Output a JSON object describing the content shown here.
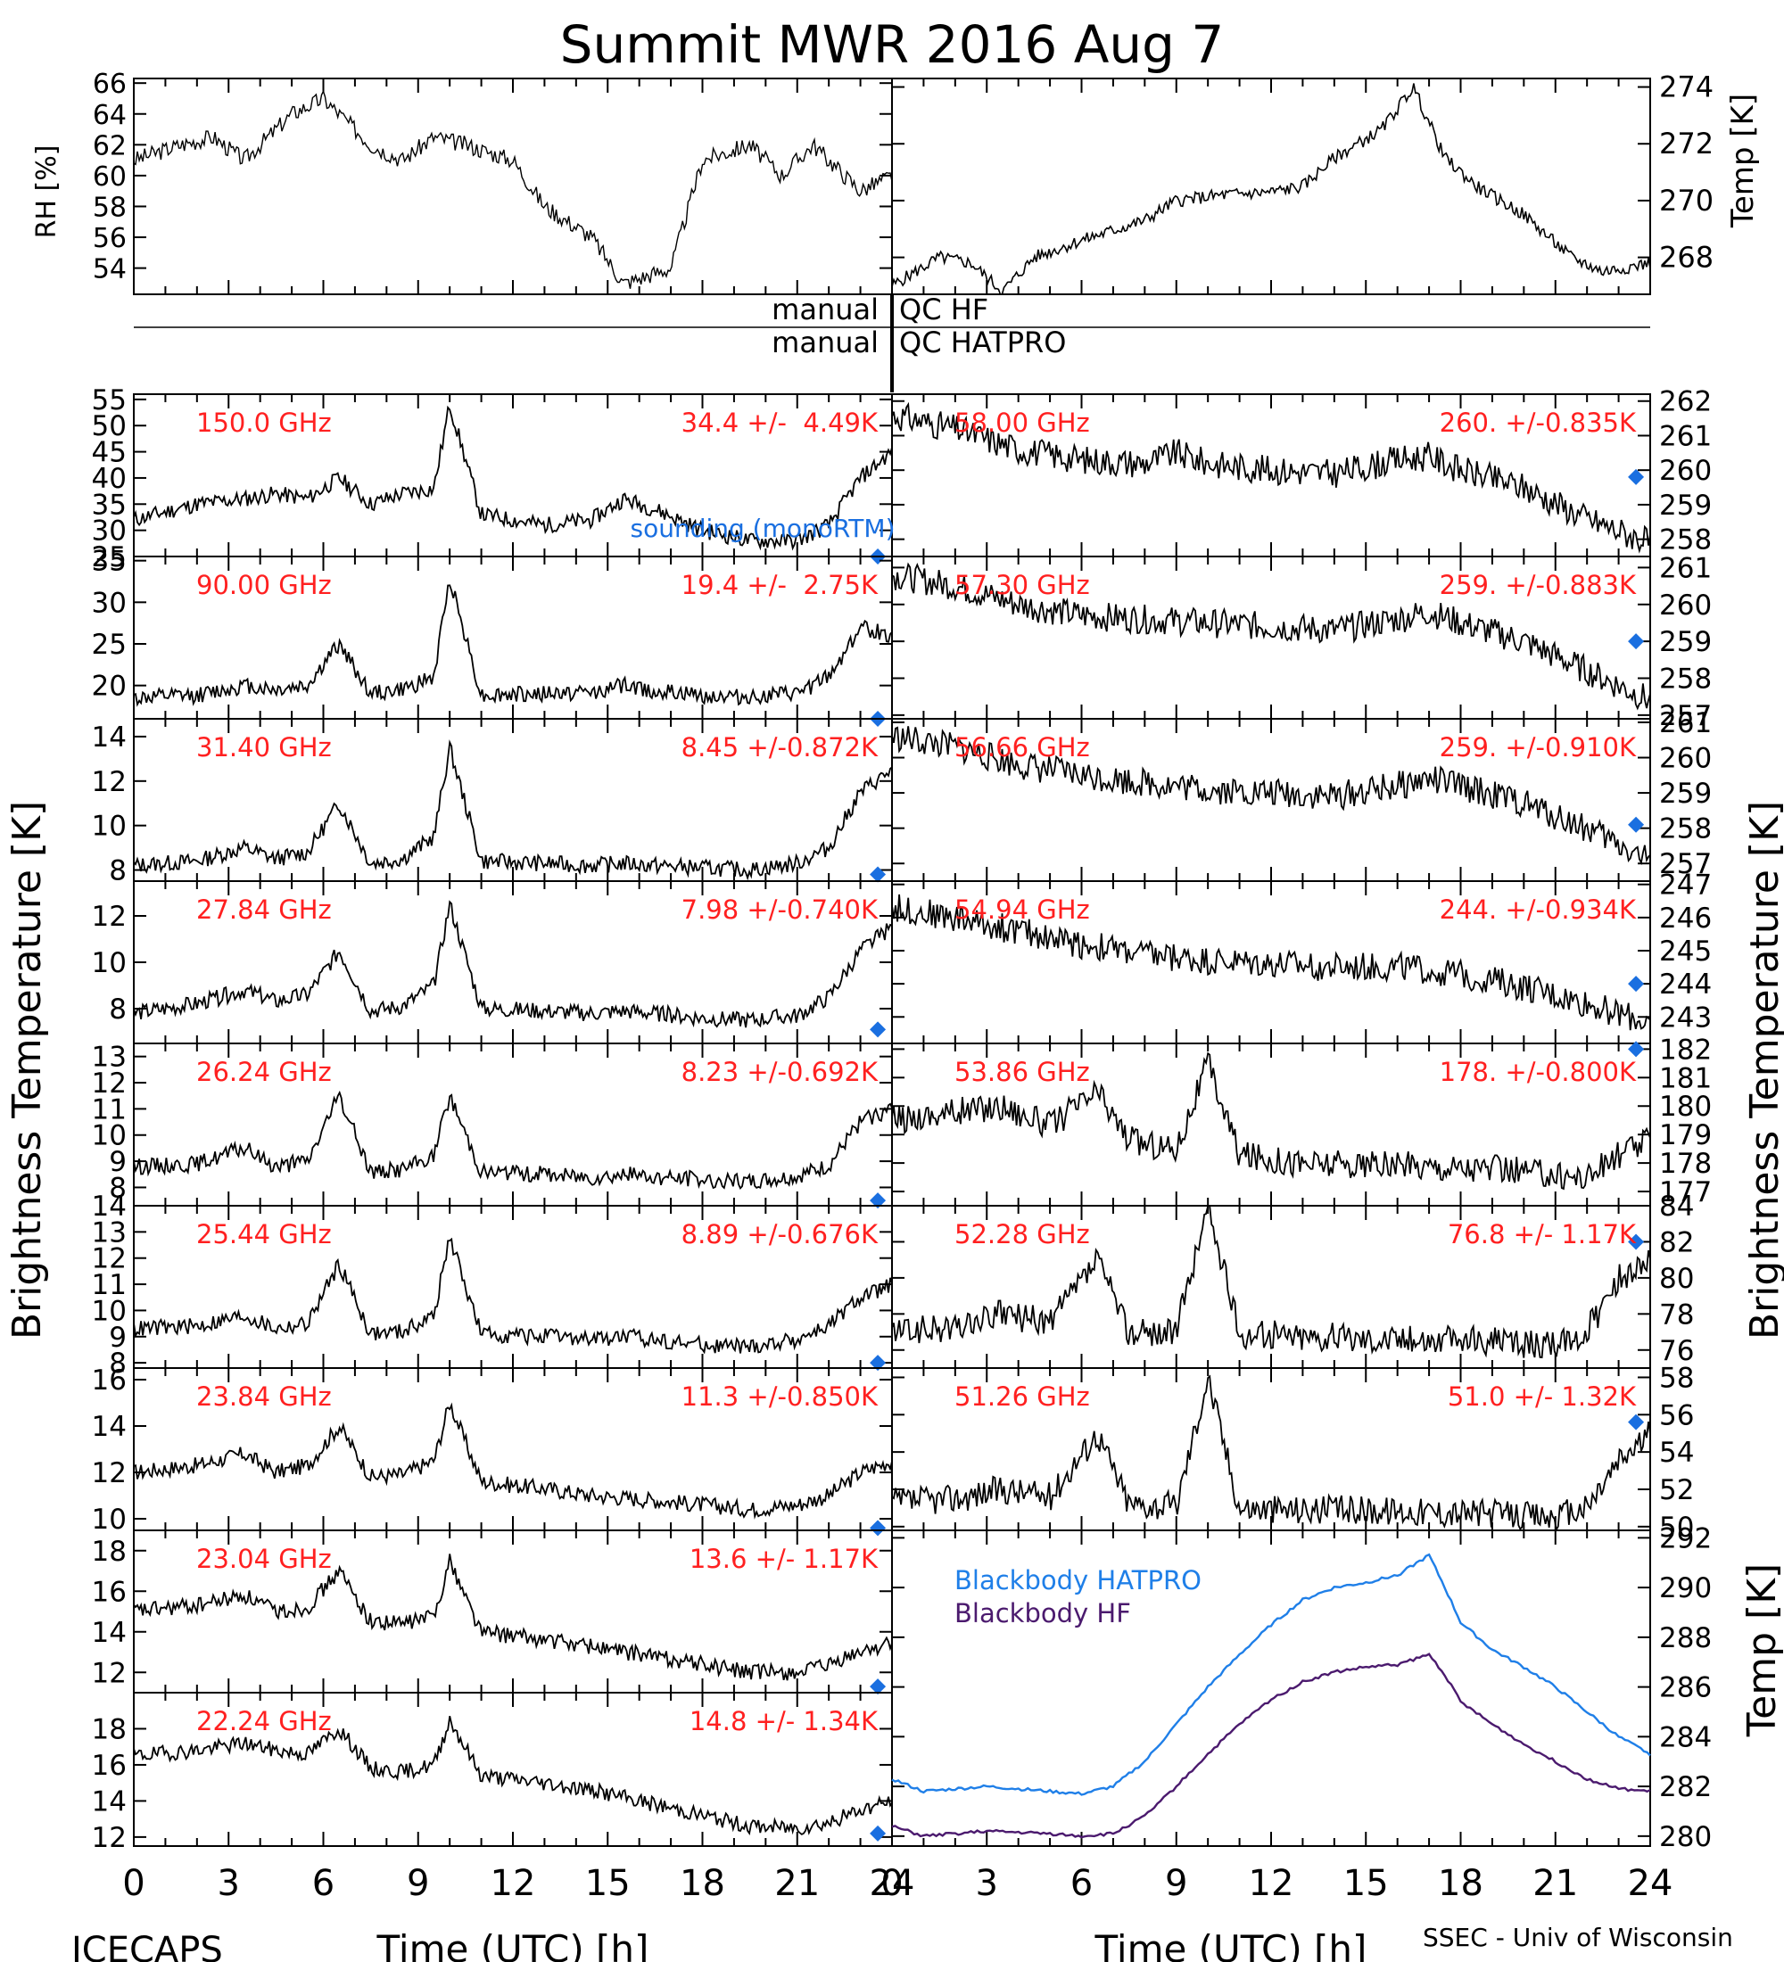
{
  "title": "Summit MWR 2016 Aug  7",
  "footer": {
    "left": "ICECAPS",
    "right": "SSEC - Univ of Wisconsin"
  },
  "qc": {
    "label_hf": "manual",
    "tag_hf": "QC HF",
    "label_hatpro": "manual",
    "tag_hatpro": "QC HATPRO"
  },
  "axis_labels": {
    "rh": "RH [%]",
    "temp": "Temp [K]",
    "tb_left": "Brightness Temperature [K]",
    "tb_right": "Brightness Temperature [K]",
    "bb_temp": "Temp [K]",
    "x_left": "Time (UTC) [h]",
    "x_right": "Time (UTC) [h]"
  },
  "colors": {
    "trace": "#000000",
    "annot": "#ff2020",
    "sounding": "#1a6fe0",
    "hatpro": "#1f7fe8",
    "hf": "#4b1a6e"
  },
  "chart_data": [
    {
      "type": "line",
      "id": "rh",
      "ylabel": "RH [%]",
      "xlim": [
        0,
        24
      ],
      "ylim": [
        52.3,
        66.3
      ],
      "yticks": [
        54,
        56,
        58,
        60,
        62,
        64,
        66
      ],
      "x": [
        0,
        1.5,
        2.5,
        3.5,
        5,
        6,
        7.5,
        8.5,
        9.5,
        10.5,
        12,
        13,
        14.5,
        15.5,
        17,
        18,
        19.5,
        20.5,
        21.5,
        23,
        24
      ],
      "y": [
        61,
        62,
        62.5,
        61,
        64,
        65,
        62,
        61,
        62.5,
        62,
        61,
        58,
        56,
        53,
        54,
        61,
        62,
        60,
        62,
        59,
        60
      ]
    },
    {
      "type": "line",
      "id": "temp",
      "ylabel": "Temp [K]",
      "xlim": [
        0,
        24
      ],
      "ylim": [
        266.7,
        274.3
      ],
      "yticks": [
        268,
        270,
        272,
        274
      ],
      "x": [
        0,
        1.5,
        2.5,
        3.5,
        4.5,
        6,
        8,
        9,
        10.5,
        12,
        13,
        14,
        15.5,
        16.5,
        17.5,
        18.5,
        20,
        21.5,
        22.5,
        24
      ],
      "y": [
        267,
        268,
        267.8,
        266.8,
        268,
        268.6,
        269.3,
        270,
        270.2,
        270.3,
        270.5,
        271.5,
        272.5,
        274,
        271.5,
        270.5,
        269.5,
        268,
        267.5,
        267.8
      ]
    },
    {
      "type": "line",
      "id": "150.0",
      "label": "150.0 GHz",
      "stats": "34.4 +/-  4.49K",
      "side": "left",
      "ylim": [
        25,
        56
      ],
      "yticks": [
        25,
        30,
        35,
        40,
        45,
        50,
        55
      ],
      "x": [
        0,
        2,
        3.5,
        4.5,
        5.5,
        6.5,
        7.5,
        8.5,
        9.5,
        10,
        11,
        13,
        14.5,
        15.5,
        16.5,
        18,
        19.5,
        21,
        22,
        23,
        24
      ],
      "y": [
        32,
        35,
        36,
        37,
        36,
        40,
        35,
        37,
        38,
        54,
        33,
        31,
        32,
        36,
        34,
        30,
        28,
        28,
        31,
        40,
        45
      ],
      "sounding": 25
    },
    {
      "type": "line",
      "id": "90.00",
      "label": "90.00 GHz",
      "stats": "19.4 +/-  2.75K",
      "side": "left",
      "ylim": [
        16,
        35.5
      ],
      "yticks": [
        20,
        25,
        30,
        35
      ],
      "x": [
        0,
        2,
        3.5,
        4.5,
        5.5,
        6.5,
        7.5,
        8.5,
        9.5,
        10,
        11,
        13,
        14.5,
        15.5,
        16.5,
        18,
        19.5,
        21,
        22,
        23,
        24
      ],
      "y": [
        18.5,
        18.8,
        20,
        19.5,
        20,
        25,
        19,
        19.5,
        21,
        33,
        18.8,
        19,
        19.2,
        20,
        19.3,
        18.8,
        18.6,
        19,
        21,
        27,
        26
      ],
      "sounding": 16
    },
    {
      "type": "line",
      "id": "31.40",
      "label": "31.40 GHz",
      "stats": "8.45 +/-0.872K",
      "side": "left",
      "ylim": [
        7.5,
        14.8
      ],
      "yticks": [
        8,
        10,
        12,
        14
      ],
      "x": [
        0,
        2,
        3.5,
        4.5,
        5.5,
        6.5,
        7.5,
        8.5,
        9.5,
        10,
        11,
        13,
        14.5,
        15.5,
        16.5,
        18,
        19.5,
        21,
        22,
        23,
        24
      ],
      "y": [
        8.2,
        8.4,
        9,
        8.5,
        8.8,
        11,
        8.3,
        8.5,
        9.5,
        13.5,
        8.4,
        8.3,
        8.2,
        8.3,
        8.2,
        8.1,
        8,
        8.3,
        9,
        11.5,
        12.5
      ],
      "sounding": 7.8
    },
    {
      "type": "line",
      "id": "27.84",
      "label": "27.84 GHz",
      "stats": "7.98 +/-0.740K",
      "side": "left",
      "ylim": [
        6.5,
        13.5
      ],
      "yticks": [
        8,
        10,
        12
      ],
      "x": [
        0,
        2,
        3.5,
        4.5,
        5.5,
        6.5,
        7.5,
        8.5,
        9.5,
        10,
        11,
        13,
        14.5,
        15.5,
        16.5,
        18,
        19.5,
        21,
        22,
        23,
        24
      ],
      "y": [
        7.8,
        8.2,
        8.8,
        8.3,
        8.6,
        10.5,
        7.9,
        8.1,
        9,
        12.5,
        8,
        7.9,
        7.8,
        7.9,
        7.8,
        7.6,
        7.5,
        7.7,
        8.5,
        10.5,
        11.5
      ],
      "sounding": 7.1
    },
    {
      "type": "line",
      "id": "26.24",
      "label": "26.24 GHz",
      "stats": "8.23 +/-0.692K",
      "side": "left",
      "ylim": [
        7.3,
        13.5
      ],
      "yticks": [
        8,
        9,
        10,
        11,
        12,
        13
      ],
      "x": [
        0,
        2,
        3.5,
        4.5,
        5.5,
        6.5,
        7.5,
        8.5,
        9.5,
        10,
        11,
        13,
        14.5,
        15.5,
        16.5,
        18,
        19.5,
        21,
        22,
        23,
        24
      ],
      "y": [
        8.8,
        8.9,
        9.5,
        8.8,
        9,
        11.5,
        8.6,
        8.7,
        9.2,
        11.5,
        8.6,
        8.5,
        8.4,
        8.5,
        8.4,
        8.3,
        8.2,
        8.4,
        8.8,
        10.5,
        11
      ],
      "sounding": 7.5
    },
    {
      "type": "line",
      "id": "25.44",
      "label": "25.44 GHz",
      "stats": "8.89 +/-0.676K",
      "side": "left",
      "ylim": [
        7.8,
        14
      ],
      "yticks": [
        8,
        9,
        10,
        11,
        12,
        13,
        14
      ],
      "x": [
        0,
        2,
        3.5,
        4.5,
        5.5,
        6.5,
        7.5,
        8.5,
        9.5,
        10,
        11,
        13,
        14.5,
        15.5,
        16.5,
        18,
        19.5,
        21,
        22,
        23,
        24
      ],
      "y": [
        9.3,
        9.4,
        9.8,
        9.3,
        9.5,
        11.8,
        9.1,
        9.2,
        9.8,
        12.8,
        9.1,
        9,
        8.9,
        9,
        8.9,
        8.7,
        8.6,
        8.9,
        9.4,
        10.5,
        11
      ],
      "sounding": 8
    },
    {
      "type": "line",
      "id": "23.84",
      "label": "23.84 GHz",
      "stats": "11.3 +/-0.850K",
      "side": "left",
      "ylim": [
        9.5,
        16.5
      ],
      "yticks": [
        10,
        12,
        14,
        16
      ],
      "x": [
        0,
        2,
        3.5,
        4.5,
        5.5,
        6.5,
        7.5,
        8.5,
        9.5,
        10,
        11,
        13,
        14.5,
        15.5,
        16.5,
        18,
        19.5,
        21,
        22,
        23,
        24
      ],
      "y": [
        12,
        12.3,
        12.8,
        12,
        12.3,
        14,
        11.8,
        11.9,
        12.5,
        15,
        11.6,
        11.3,
        11,
        10.9,
        10.8,
        10.6,
        10.4,
        10.6,
        11,
        12,
        12.5
      ],
      "sounding": 9.6
    },
    {
      "type": "line",
      "id": "23.04",
      "label": "23.04 GHz",
      "stats": "13.6 +/- 1.17K",
      "side": "left",
      "ylim": [
        11,
        19
      ],
      "yticks": [
        12,
        14,
        16,
        18
      ],
      "x": [
        0,
        2,
        3.5,
        4.5,
        5.5,
        6.5,
        7.5,
        8.5,
        9.5,
        10,
        11,
        13,
        14.5,
        15.5,
        16.5,
        18,
        19.5,
        21,
        22,
        23,
        24
      ],
      "y": [
        15,
        15.3,
        15.8,
        15,
        15.2,
        17,
        14.5,
        14.4,
        14.8,
        17.5,
        14,
        13.6,
        13.3,
        13,
        12.8,
        12.4,
        12,
        12,
        12.3,
        13,
        13.5
      ],
      "sounding": 11.3
    },
    {
      "type": "line",
      "id": "22.24",
      "label": "22.24 GHz",
      "stats": "14.8 +/- 1.34K",
      "side": "left",
      "ylim": [
        11.5,
        20
      ],
      "yticks": [
        12,
        14,
        16,
        18
      ],
      "x": [
        0,
        2,
        3.5,
        4.5,
        5.5,
        6.5,
        7.5,
        8.5,
        9.5,
        10,
        11,
        13,
        14.5,
        15.5,
        16.5,
        18,
        19.5,
        21,
        22,
        23,
        24
      ],
      "y": [
        16.5,
        16.8,
        17.2,
        16.8,
        16.6,
        18,
        15.8,
        15.6,
        16,
        18.5,
        15.4,
        15,
        14.6,
        14.2,
        13.8,
        13.2,
        12.6,
        12.5,
        12.8,
        13.5,
        14
      ],
      "sounding": 12.2
    },
    {
      "type": "line",
      "id": "58.00",
      "label": "58.00 GHz",
      "stats": "260. +/-0.835K",
      "side": "right",
      "ylim": [
        257.5,
        262.2
      ],
      "yticks": [
        258,
        259,
        260,
        261,
        262
      ],
      "x": [
        0,
        2,
        4,
        6,
        8,
        9,
        10,
        12,
        14,
        16,
        17,
        18,
        20,
        22,
        24
      ],
      "y": [
        261.6,
        261.2,
        260.6,
        260.3,
        260.2,
        260.5,
        260.2,
        260,
        259.9,
        260.3,
        260.4,
        260,
        259.5,
        258.6,
        257.9
      ],
      "sounding": 259.8
    },
    {
      "type": "line",
      "id": "57.30",
      "label": "57.30 GHz",
      "stats": "259. +/-0.883K",
      "side": "right",
      "ylim": [
        256.9,
        261.3
      ],
      "yticks": [
        257,
        258,
        259,
        260,
        261
      ],
      "x": [
        0,
        2,
        4,
        6,
        8,
        10,
        12,
        14,
        16,
        17,
        18,
        20,
        22,
        24
      ],
      "y": [
        260.8,
        260.5,
        260,
        259.7,
        259.6,
        259.5,
        259.4,
        259.3,
        259.6,
        259.8,
        259.5,
        259,
        258.2,
        257.4
      ],
      "sounding": 259
    },
    {
      "type": "line",
      "id": "56.66",
      "label": "56.66 GHz",
      "stats": "259. +/-0.910K",
      "side": "right",
      "ylim": [
        256.5,
        261.1
      ],
      "yticks": [
        257,
        258,
        259,
        260,
        261
      ],
      "x": [
        0,
        2,
        4,
        6,
        8,
        10,
        12,
        14,
        16,
        17,
        18,
        20,
        22,
        24
      ],
      "y": [
        260.6,
        260.3,
        259.8,
        259.5,
        259.3,
        259.1,
        259,
        258.9,
        259.2,
        259.4,
        259.2,
        258.7,
        258,
        257.1
      ],
      "sounding": 258.1
    },
    {
      "type": "line",
      "id": "54.94",
      "label": "54.94 GHz",
      "stats": "244. +/-0.934K",
      "side": "right",
      "ylim": [
        242.2,
        247.1
      ],
      "yticks": [
        243,
        244,
        245,
        246,
        247
      ],
      "x": [
        0,
        2,
        4,
        6,
        8,
        10,
        12,
        14,
        16,
        18,
        20,
        22,
        24
      ],
      "y": [
        246.3,
        246,
        245.6,
        245.2,
        244.9,
        244.7,
        244.6,
        244.5,
        244.5,
        244.3,
        243.9,
        243.4,
        242.8
      ],
      "sounding": 244
    },
    {
      "type": "line",
      "id": "53.86",
      "label": "53.86 GHz",
      "stats": "178. +/-0.800K",
      "side": "right",
      "ylim": [
        176.5,
        182.2
      ],
      "yticks": [
        177,
        178,
        179,
        180,
        181,
        182
      ],
      "x": [
        0,
        2,
        3.5,
        5,
        6.5,
        7.5,
        9,
        10,
        11,
        13,
        15,
        17,
        19,
        21,
        22,
        23,
        24
      ],
      "y": [
        179.5,
        179.8,
        180,
        179.3,
        180.5,
        178.8,
        178.5,
        181.5,
        178.3,
        178,
        177.9,
        177.9,
        177.8,
        177.6,
        177.5,
        178.3,
        178.8
      ],
      "sounding": 182
    },
    {
      "type": "line",
      "id": "52.28",
      "label": "52.28 GHz",
      "stats": "76.8 +/- 1.17K",
      "side": "right",
      "ylim": [
        75,
        84
      ],
      "yticks": [
        76,
        78,
        80,
        82,
        84
      ],
      "x": [
        0,
        2,
        3.5,
        5,
        6.5,
        7.5,
        9,
        10,
        11,
        13,
        15,
        17,
        19,
        21,
        22,
        23,
        24
      ],
      "y": [
        77,
        77.2,
        78,
        77.5,
        81,
        77,
        77,
        84,
        76.9,
        76.8,
        76.7,
        76.6,
        76.5,
        76.2,
        77,
        80,
        81
      ],
      "sounding": 82
    },
    {
      "type": "line",
      "id": "51.26",
      "label": "51.26 GHz",
      "stats": "51.0 +/- 1.32K",
      "side": "right",
      "ylim": [
        49.8,
        58.5
      ],
      "yticks": [
        50,
        52,
        54,
        56,
        58
      ],
      "x": [
        0,
        2,
        3.5,
        5,
        6.5,
        7.5,
        9,
        10,
        11,
        13,
        15,
        17,
        19,
        21,
        22,
        23,
        24
      ],
      "y": [
        51.3,
        51.5,
        52,
        51.6,
        55,
        51.2,
        51.1,
        58,
        51,
        50.9,
        50.9,
        50.8,
        50.7,
        50.5,
        51,
        53.5,
        55
      ],
      "sounding": 55.6
    },
    {
      "type": "line",
      "id": "blackbody",
      "side": "right",
      "xlim": [
        0,
        24
      ],
      "ylim": [
        279.6,
        292.3
      ],
      "yticks": [
        280,
        282,
        284,
        286,
        288,
        290,
        292
      ],
      "series": [
        {
          "name": "Blackbody HATPRO",
          "color": "#1f7fe8",
          "x": [
            0,
            1,
            3,
            5,
            6,
            7,
            8,
            9,
            10,
            11,
            12,
            13,
            14,
            15,
            16,
            17,
            17.5,
            18,
            19,
            20,
            21,
            22,
            23,
            24
          ],
          "y": [
            282.3,
            281.8,
            282,
            281.8,
            281.7,
            282,
            283,
            284.5,
            286,
            287.3,
            288.5,
            289.5,
            290,
            290.2,
            290.5,
            291.3,
            290,
            288.6,
            287.5,
            286.8,
            286,
            285,
            284,
            283.3
          ]
        },
        {
          "name": "Blackbody HF",
          "color": "#4b1a6e",
          "x": [
            0,
            1,
            3,
            5,
            6,
            7,
            8,
            9,
            10,
            11,
            12,
            13,
            14,
            15,
            16,
            17,
            17.5,
            18,
            19,
            20,
            21,
            22,
            23,
            24
          ],
          "y": [
            280.4,
            280,
            280.2,
            280.1,
            280,
            280.1,
            280.8,
            282,
            283.3,
            284.5,
            285.5,
            286.2,
            286.6,
            286.8,
            286.9,
            287.3,
            286.5,
            285.4,
            284.5,
            283.7,
            283,
            282.3,
            281.9,
            281.8
          ]
        }
      ]
    }
  ],
  "x_ticks": [
    "0",
    "3",
    "6",
    "9",
    "12",
    "15",
    "18",
    "21",
    "24"
  ],
  "sounding_label": "sounding (monoRTM)"
}
